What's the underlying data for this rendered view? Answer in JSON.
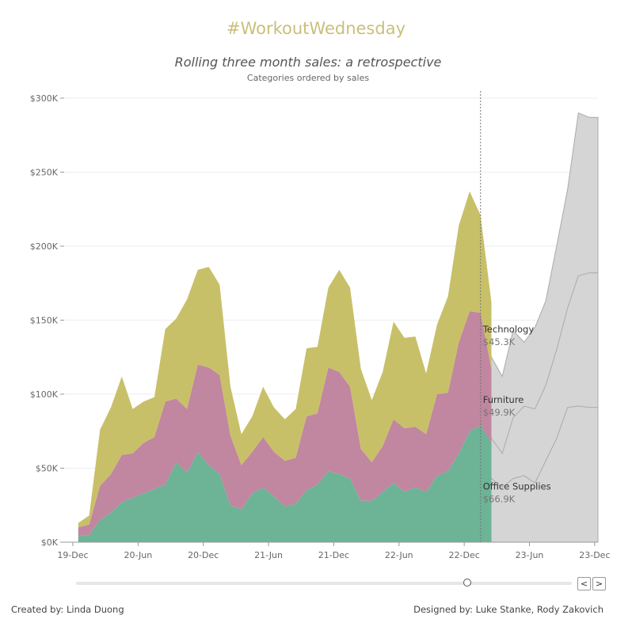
{
  "header": {
    "hashtag": "#WorkoutWednesday",
    "title": "Rolling three month sales: a retrospective",
    "subtitle": "Categories ordered by sales"
  },
  "footer": {
    "created_by": "Created by: Linda Duong",
    "designed_by": "Designed by: Luke Stanke, Rody Zakovich"
  },
  "controls": {
    "prev_label": "<",
    "next_label": ">",
    "slider_fraction": 0.788
  },
  "colors": {
    "office_supplies": "#6db396",
    "furniture": "#c186a0",
    "technology": "#c8c068",
    "forecast": "#d5d5d5",
    "forecast_line": "#aaaaaa",
    "hashtag": "#c9bf7a"
  },
  "chart_data": {
    "type": "area",
    "stacked": true,
    "title": "Rolling three month sales: a retrospective",
    "subtitle": "Categories ordered by sales",
    "ylim": [
      0,
      300000
    ],
    "y_ticks": [
      0,
      50000,
      100000,
      150000,
      200000,
      250000,
      300000
    ],
    "y_tick_labels": [
      "$0K",
      "$50K",
      "$100K",
      "$150K",
      "$200K",
      "$250K",
      "$300K"
    ],
    "x_tick_labels": [
      "19-Dec",
      "20-Jun",
      "20-Dec",
      "21-Jun",
      "21-Dec",
      "22-Jun",
      "22-Dec",
      "23-Jun",
      "23-Dec"
    ],
    "x_tick_months": [
      0,
      6,
      12,
      18,
      24,
      30,
      36,
      42,
      48
    ],
    "x_range_months": [
      -0.8,
      48.3
    ],
    "x_start": "2019-12",
    "cutoff_month": 37.5,
    "grid": true,
    "series": [
      {
        "name": "Office Supplies",
        "label_value": "$66.9K",
        "values": [
          4000,
          5000,
          15000,
          20000,
          27000,
          30000,
          33000,
          36000,
          39000,
          54000,
          47000,
          61000,
          52000,
          46000,
          25000,
          22000,
          33000,
          37000,
          31000,
          24000,
          26000,
          35000,
          39000,
          48000,
          46000,
          43000,
          28000,
          28000,
          34000,
          40000,
          34000,
          37000,
          34000,
          45000,
          48000,
          60000,
          75000,
          79000,
          66900
        ]
      },
      {
        "name": "Furniture",
        "label_value": "$49.9K",
        "values": [
          6000,
          7000,
          23000,
          26000,
          32000,
          30000,
          34000,
          35000,
          56000,
          43000,
          43000,
          59000,
          66000,
          67000,
          47000,
          30000,
          28000,
          34000,
          30000,
          31000,
          31000,
          50000,
          48000,
          70000,
          69000,
          62000,
          35000,
          26000,
          31000,
          43000,
          43000,
          41000,
          39000,
          55000,
          53000,
          75000,
          81000,
          76000,
          49900
        ]
      },
      {
        "name": "Technology",
        "label_value": "$45.3K",
        "values": [
          3000,
          6000,
          38000,
          45000,
          53000,
          30000,
          28000,
          27000,
          49000,
          54000,
          74000,
          64000,
          68000,
          61000,
          33000,
          21000,
          24000,
          34000,
          30000,
          28000,
          33000,
          46000,
          45000,
          54000,
          69000,
          67000,
          54000,
          42000,
          50000,
          66000,
          61000,
          61000,
          41000,
          47000,
          65000,
          79000,
          81000,
          66000,
          45300
        ]
      }
    ],
    "forecast_bands": {
      "x_months": [
        37.5,
        38.5,
        39.5,
        40.5,
        41.5,
        42.5,
        43.5,
        44.5,
        45.5,
        46.5,
        47.5,
        48.3
      ],
      "lower": [
        66900,
        43000,
        37000,
        43000,
        45000,
        40000,
        55000,
        70000,
        91000,
        92000,
        91000,
        91000
      ],
      "middle": [
        116800,
        70000,
        60000,
        84000,
        92000,
        90000,
        106000,
        130000,
        158000,
        180000,
        182000,
        182000
      ],
      "upper": [
        162100,
        125000,
        112000,
        143000,
        135000,
        145000,
        163000,
        200000,
        238000,
        290000,
        287000,
        287000
      ]
    }
  }
}
